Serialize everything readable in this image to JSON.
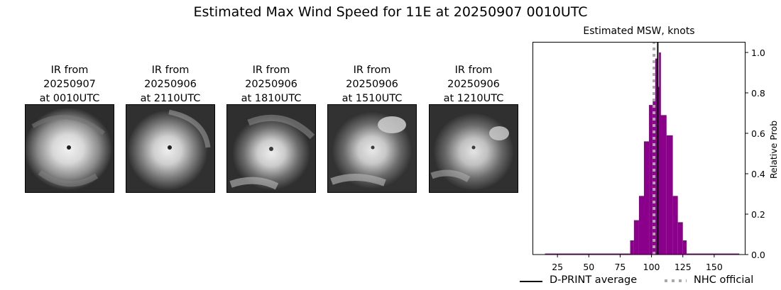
{
  "figure": {
    "suptitle": "Estimated Max Wind Speed for 11E at 20250907 0010UTC"
  },
  "ir_panels": [
    {
      "title": "IR from\n20250907\nat 0010UTC",
      "date": "20250907",
      "time": "0010UTC"
    },
    {
      "title": "IR from\n20250906\nat 2110UTC",
      "date": "20250906",
      "time": "2110UTC"
    },
    {
      "title": "IR from\n20250906\nat 1810UTC",
      "date": "20250906",
      "time": "1810UTC"
    },
    {
      "title": "IR from\n20250906\nat 1510UTC",
      "date": "20250906",
      "time": "1510UTC"
    },
    {
      "title": "IR from\n20250906\nat 1210UTC",
      "date": "20250906",
      "time": "1210UTC"
    }
  ],
  "legend": {
    "dprint_label": "D-PRINT average",
    "nhc_label": "NHC official"
  },
  "colors": {
    "bar": "#8b008b",
    "dprint_line": "#000000",
    "nhc_line": "#a9a9a9"
  },
  "chart_data": {
    "type": "bar",
    "title": "Estimated MSW, knots",
    "xlabel": "",
    "ylabel": "Relative Prob",
    "xlim": [
      5,
      175
    ],
    "ylim": [
      0,
      1.05
    ],
    "xticks": [
      25,
      50,
      75,
      100,
      125,
      150
    ],
    "yticks": [
      0.0,
      0.2,
      0.4,
      0.6,
      0.8,
      1.0
    ],
    "ytick_labels": [
      "0.0",
      "0.2",
      "0.4",
      "0.6",
      "0.8",
      "1.0"
    ],
    "y_axis_position": "right",
    "grid": false,
    "legend_position": "below",
    "bins": [
      {
        "x0": 15,
        "x1": 83,
        "value": 0.005
      },
      {
        "x0": 83,
        "x1": 86,
        "value": 0.07
      },
      {
        "x0": 86,
        "x1": 90,
        "value": 0.17
      },
      {
        "x0": 90,
        "x1": 94,
        "value": 0.29
      },
      {
        "x0": 94,
        "x1": 98,
        "value": 0.56
      },
      {
        "x0": 98,
        "x1": 101,
        "value": 0.74
      },
      {
        "x0": 101,
        "x1": 103,
        "value": 0.77
      },
      {
        "x0": 103,
        "x1": 104.5,
        "value": 0.97
      },
      {
        "x0": 104.5,
        "x1": 107,
        "value": 0.83
      },
      {
        "x0": 106,
        "x1": 107.5,
        "value": 1.0
      },
      {
        "x0": 107,
        "x1": 112,
        "value": 0.69
      },
      {
        "x0": 112,
        "x1": 117,
        "value": 0.59
      },
      {
        "x0": 117,
        "x1": 121,
        "value": 0.29
      },
      {
        "x0": 121,
        "x1": 125,
        "value": 0.16
      },
      {
        "x0": 125,
        "x1": 128,
        "value": 0.07
      },
      {
        "x0": 128,
        "x1": 170,
        "value": 0.005
      }
    ],
    "series": [
      {
        "name": "D-PRINT average",
        "style": "solid",
        "x": 105
      },
      {
        "name": "NHC official",
        "style": "dotted",
        "x": 102
      }
    ]
  }
}
